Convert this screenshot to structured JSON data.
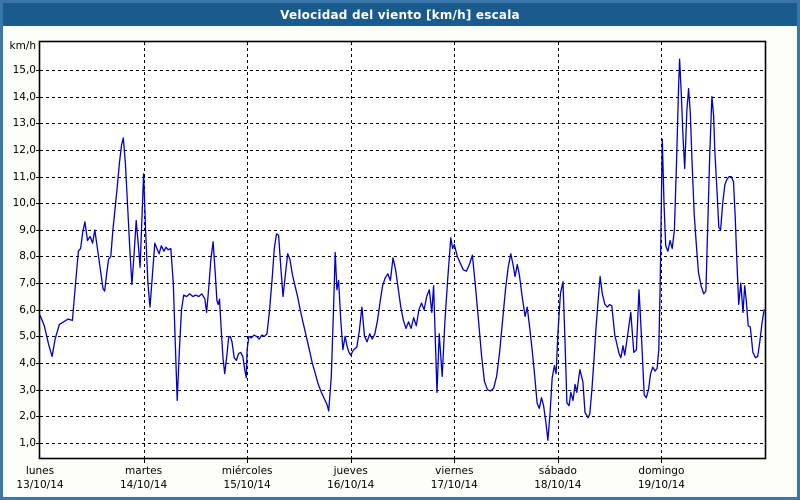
{
  "window": {
    "title": "Velocidad del viento [km/h] escala"
  },
  "chart_data": {
    "type": "line",
    "title": "Velocidad del viento [km/h] escala",
    "y_unit_label": "km/h",
    "ylabel": "km/h",
    "xlabel": "",
    "grid": "dashed-black",
    "legend_position": "none",
    "line_color": "#0000cd",
    "background_color": "#ffffff",
    "titlebar_color": "#1a5a8c",
    "frame_color": "#3a77a8",
    "ylim": [
      0.45,
      16.1
    ],
    "y_ticks": [
      1,
      2,
      3,
      4,
      5,
      6,
      7,
      8,
      9,
      10,
      11,
      12,
      13,
      14,
      15
    ],
    "y_tick_labels": [
      "1,0",
      "2,0",
      "3,0",
      "4,0",
      "5,0",
      "6,0",
      "7,0",
      "8,0",
      "9,0",
      "10,0",
      "11,0",
      "12,0",
      "13,0",
      "14,0",
      "15,0"
    ],
    "x_range_hours": [
      0,
      168
    ],
    "x_days": [
      {
        "name": "lunes",
        "date": "13/10/14"
      },
      {
        "name": "martes",
        "date": "14/10/14"
      },
      {
        "name": "miércoles",
        "date": "15/10/14"
      },
      {
        "name": "jueves",
        "date": "16/10/14"
      },
      {
        "name": "viernes",
        "date": "17/10/14"
      },
      {
        "name": "sábado",
        "date": "18/10/14"
      },
      {
        "name": "domingo",
        "date": "19/10/14"
      }
    ],
    "series": [
      {
        "name": "Velocidad del viento",
        "unit": "km/h",
        "points": [
          [
            0,
            5.8
          ],
          [
            1,
            5.4
          ],
          [
            2,
            4.7
          ],
          [
            2.8,
            4.25
          ],
          [
            3.5,
            4.9
          ],
          [
            4.5,
            5.45
          ],
          [
            5.5,
            5.55
          ],
          [
            6.5,
            5.65
          ],
          [
            7.5,
            5.6
          ],
          [
            8.3,
            7.1
          ],
          [
            8.9,
            8.2
          ],
          [
            9.4,
            8.3
          ],
          [
            9.9,
            8.9
          ],
          [
            10.4,
            9.3
          ],
          [
            11,
            8.6
          ],
          [
            11.6,
            8.75
          ],
          [
            12.2,
            8.5
          ],
          [
            12.7,
            9.0
          ],
          [
            13.4,
            8.2
          ],
          [
            14,
            7.5
          ],
          [
            14.6,
            6.8
          ],
          [
            15,
            6.7
          ],
          [
            15.4,
            7.3
          ],
          [
            15.9,
            7.9
          ],
          [
            16.4,
            8.0
          ],
          [
            16.9,
            9.0
          ],
          [
            17.4,
            9.8
          ],
          [
            17.9,
            10.6
          ],
          [
            18.4,
            11.5
          ],
          [
            18.9,
            12.2
          ],
          [
            19.3,
            12.45
          ],
          [
            19.8,
            11.5
          ],
          [
            20.3,
            9.9
          ],
          [
            20.8,
            8.3
          ],
          [
            21.3,
            6.95
          ],
          [
            21.8,
            8.1
          ],
          [
            22.3,
            9.35
          ],
          [
            22.8,
            8.4
          ],
          [
            23.2,
            7.6
          ],
          [
            23.6,
            9.3
          ],
          [
            24,
            11.1
          ],
          [
            24.5,
            8.9
          ],
          [
            25,
            7.0
          ],
          [
            25.5,
            6.1
          ],
          [
            26,
            7.2
          ],
          [
            26.6,
            8.5
          ],
          [
            27.1,
            8.3
          ],
          [
            27.6,
            8.1
          ],
          [
            28.1,
            8.4
          ],
          [
            28.7,
            8.2
          ],
          [
            29.2,
            8.35
          ],
          [
            29.7,
            8.25
          ],
          [
            30.3,
            8.3
          ],
          [
            30.9,
            7.0
          ],
          [
            31.4,
            4.5
          ],
          [
            31.8,
            2.6
          ],
          [
            32.3,
            4.5
          ],
          [
            32.8,
            6.0
          ],
          [
            33.3,
            6.55
          ],
          [
            34,
            6.5
          ],
          [
            34.7,
            6.6
          ],
          [
            35.4,
            6.5
          ],
          [
            36.1,
            6.55
          ],
          [
            36.8,
            6.5
          ],
          [
            37.5,
            6.6
          ],
          [
            38.2,
            6.4
          ],
          [
            38.6,
            5.9
          ],
          [
            39.1,
            6.8
          ],
          [
            39.6,
            7.9
          ],
          [
            40.1,
            8.55
          ],
          [
            40.6,
            7.4
          ],
          [
            41,
            6.35
          ],
          [
            41.3,
            6.2
          ],
          [
            41.6,
            6.4
          ],
          [
            42,
            5.2
          ],
          [
            42.4,
            4.2
          ],
          [
            42.8,
            3.6
          ],
          [
            43.3,
            4.3
          ],
          [
            43.7,
            4.95
          ],
          [
            44.1,
            5.0
          ],
          [
            44.5,
            4.8
          ],
          [
            45,
            4.2
          ],
          [
            45.5,
            4.1
          ],
          [
            46,
            4.35
          ],
          [
            46.5,
            4.4
          ],
          [
            47,
            4.25
          ],
          [
            47.5,
            3.7
          ],
          [
            47.8,
            3.45
          ],
          [
            48,
            4.5
          ],
          [
            48.4,
            5.0
          ],
          [
            49,
            4.95
          ],
          [
            49.6,
            5.05
          ],
          [
            50.2,
            5.0
          ],
          [
            50.8,
            4.9
          ],
          [
            51.4,
            5.05
          ],
          [
            52,
            5.0
          ],
          [
            52.6,
            5.1
          ],
          [
            53.2,
            6.0
          ],
          [
            53.8,
            7.2
          ],
          [
            54.3,
            8.3
          ],
          [
            54.8,
            8.85
          ],
          [
            55.3,
            8.8
          ],
          [
            55.8,
            7.6
          ],
          [
            56.3,
            6.5
          ],
          [
            56.9,
            7.4
          ],
          [
            57.4,
            8.1
          ],
          [
            57.9,
            7.9
          ],
          [
            58.5,
            7.3
          ],
          [
            59.1,
            6.9
          ],
          [
            59.7,
            6.5
          ],
          [
            60.3,
            6.0
          ],
          [
            61,
            5.5
          ],
          [
            61.7,
            5.0
          ],
          [
            62.4,
            4.5
          ],
          [
            63.1,
            4.0
          ],
          [
            63.8,
            3.6
          ],
          [
            64.5,
            3.2
          ],
          [
            65.2,
            2.9
          ],
          [
            65.9,
            2.65
          ],
          [
            66.5,
            2.45
          ],
          [
            66.9,
            2.2
          ],
          [
            67.5,
            3.5
          ],
          [
            68,
            6.0
          ],
          [
            68.4,
            8.15
          ],
          [
            68.8,
            6.75
          ],
          [
            69.2,
            7.1
          ],
          [
            69.7,
            5.6
          ],
          [
            70.2,
            4.5
          ],
          [
            70.7,
            5.0
          ],
          [
            71.2,
            4.6
          ],
          [
            71.6,
            4.4
          ],
          [
            72,
            4.3
          ],
          [
            72.7,
            4.5
          ],
          [
            73.4,
            4.6
          ],
          [
            74,
            5.2
          ],
          [
            74.6,
            6.1
          ],
          [
            75.2,
            5.0
          ],
          [
            75.8,
            4.8
          ],
          [
            76.4,
            5.1
          ],
          [
            77,
            4.9
          ],
          [
            77.6,
            5.1
          ],
          [
            78.2,
            5.6
          ],
          [
            78.8,
            6.3
          ],
          [
            79.4,
            6.9
          ],
          [
            80,
            7.2
          ],
          [
            80.6,
            7.35
          ],
          [
            81.2,
            7.1
          ],
          [
            81.8,
            7.95
          ],
          [
            82.4,
            7.5
          ],
          [
            83,
            6.8
          ],
          [
            83.6,
            6.1
          ],
          [
            84.2,
            5.6
          ],
          [
            84.8,
            5.3
          ],
          [
            85.4,
            5.55
          ],
          [
            86,
            5.3
          ],
          [
            86.6,
            5.7
          ],
          [
            87.2,
            5.4
          ],
          [
            87.8,
            6.0
          ],
          [
            88.4,
            6.25
          ],
          [
            89,
            6.0
          ],
          [
            89.6,
            6.5
          ],
          [
            90.2,
            6.75
          ],
          [
            90.8,
            5.9
          ],
          [
            91.2,
            6.9
          ],
          [
            92,
            2.9
          ],
          [
            92.5,
            5.1
          ],
          [
            93.2,
            3.5
          ],
          [
            93.8,
            5.5
          ],
          [
            94.5,
            7.2
          ],
          [
            95.2,
            8.7
          ],
          [
            95.6,
            8.3
          ],
          [
            96,
            8.45
          ],
          [
            96.7,
            8.0
          ],
          [
            97.4,
            7.75
          ],
          [
            98.1,
            7.5
          ],
          [
            98.8,
            7.45
          ],
          [
            99.5,
            7.7
          ],
          [
            100.2,
            8.05
          ],
          [
            100.9,
            6.9
          ],
          [
            101.6,
            5.6
          ],
          [
            102.3,
            4.3
          ],
          [
            103,
            3.3
          ],
          [
            103.7,
            3.0
          ],
          [
            104.4,
            2.95
          ],
          [
            105.1,
            3.05
          ],
          [
            105.8,
            3.5
          ],
          [
            106.5,
            4.4
          ],
          [
            107.2,
            5.6
          ],
          [
            107.9,
            6.8
          ],
          [
            108.5,
            7.6
          ],
          [
            109.1,
            8.1
          ],
          [
            109.6,
            7.7
          ],
          [
            110.1,
            7.25
          ],
          [
            110.6,
            7.7
          ],
          [
            111.1,
            7.3
          ],
          [
            111.8,
            6.4
          ],
          [
            112.4,
            5.75
          ],
          [
            112.9,
            6.1
          ],
          [
            113.5,
            5.3
          ],
          [
            114.1,
            4.4
          ],
          [
            114.7,
            3.4
          ],
          [
            115.2,
            2.5
          ],
          [
            115.7,
            2.3
          ],
          [
            116.2,
            2.7
          ],
          [
            116.7,
            2.4
          ],
          [
            117.2,
            1.8
          ],
          [
            117.7,
            1.1
          ],
          [
            118.2,
            2.15
          ],
          [
            118.7,
            3.45
          ],
          [
            119.2,
            3.9
          ],
          [
            119.6,
            3.6
          ],
          [
            120,
            5.1
          ],
          [
            120.6,
            6.6
          ],
          [
            121.2,
            7.05
          ],
          [
            121.7,
            4.6
          ],
          [
            122.1,
            2.5
          ],
          [
            122.6,
            2.4
          ],
          [
            123,
            2.9
          ],
          [
            123.5,
            2.6
          ],
          [
            124,
            3.2
          ],
          [
            124.4,
            2.9
          ],
          [
            125.1,
            3.75
          ],
          [
            125.8,
            3.3
          ],
          [
            126.3,
            2.15
          ],
          [
            127,
            1.95
          ],
          [
            127.4,
            2.1
          ],
          [
            127.9,
            3.0
          ],
          [
            128.4,
            4.2
          ],
          [
            128.8,
            5.2
          ],
          [
            129.3,
            6.3
          ],
          [
            129.8,
            7.25
          ],
          [
            130.3,
            6.6
          ],
          [
            130.9,
            6.2
          ],
          [
            131.5,
            6.1
          ],
          [
            132,
            6.2
          ],
          [
            132.5,
            6.15
          ],
          [
            133.2,
            5.05
          ],
          [
            134.2,
            4.35
          ],
          [
            134.6,
            4.2
          ],
          [
            135.1,
            4.65
          ],
          [
            135.5,
            4.3
          ],
          [
            136.2,
            5.1
          ],
          [
            136.9,
            5.9
          ],
          [
            137.6,
            4.4
          ],
          [
            138.2,
            4.5
          ],
          [
            138.8,
            6.75
          ],
          [
            139.4,
            4.9
          ],
          [
            140,
            2.8
          ],
          [
            140.5,
            2.7
          ],
          [
            141,
            3.0
          ],
          [
            141.5,
            3.6
          ],
          [
            142,
            3.85
          ],
          [
            142.5,
            3.7
          ],
          [
            143,
            3.8
          ],
          [
            143.4,
            4.5
          ],
          [
            143.7,
            6.8
          ],
          [
            144.2,
            12.4
          ],
          [
            144.6,
            10.0
          ],
          [
            145,
            8.4
          ],
          [
            145.5,
            8.2
          ],
          [
            146,
            8.6
          ],
          [
            146.5,
            8.3
          ],
          [
            147,
            9.0
          ],
          [
            147.5,
            11.5
          ],
          [
            148,
            14.5
          ],
          [
            148.2,
            15.4
          ],
          [
            148.6,
            14.1
          ],
          [
            149,
            12.5
          ],
          [
            149.4,
            11.3
          ],
          [
            149.9,
            13.5
          ],
          [
            150.3,
            14.3
          ],
          [
            150.7,
            13.4
          ],
          [
            151.1,
            11.5
          ],
          [
            151.6,
            9.6
          ],
          [
            152.1,
            8.4
          ],
          [
            152.6,
            7.4
          ],
          [
            153.2,
            6.9
          ],
          [
            153.8,
            6.6
          ],
          [
            154.3,
            6.7
          ],
          [
            154.8,
            9.5
          ],
          [
            155.2,
            11.9
          ],
          [
            155.7,
            14.0
          ],
          [
            156.1,
            13.3
          ],
          [
            156.4,
            11.9
          ],
          [
            156.9,
            10.4
          ],
          [
            157.3,
            9.1
          ],
          [
            157.7,
            9.0
          ],
          [
            158.2,
            10.0
          ],
          [
            158.7,
            10.7
          ],
          [
            159.2,
            10.9
          ],
          [
            159.7,
            11.0
          ],
          [
            160.2,
            11.0
          ],
          [
            160.7,
            10.8
          ],
          [
            161.1,
            9.5
          ],
          [
            161.5,
            7.8
          ],
          [
            161.9,
            6.2
          ],
          [
            162.4,
            7.0
          ],
          [
            162.9,
            5.9
          ],
          [
            163.3,
            6.9
          ],
          [
            163.7,
            6.3
          ],
          [
            164.1,
            5.4
          ],
          [
            164.6,
            5.35
          ],
          [
            165.2,
            4.4
          ],
          [
            165.8,
            4.2
          ],
          [
            166.3,
            4.25
          ],
          [
            166.8,
            4.8
          ],
          [
            167.3,
            5.5
          ],
          [
            167.8,
            6.0
          ]
        ]
      }
    ]
  }
}
